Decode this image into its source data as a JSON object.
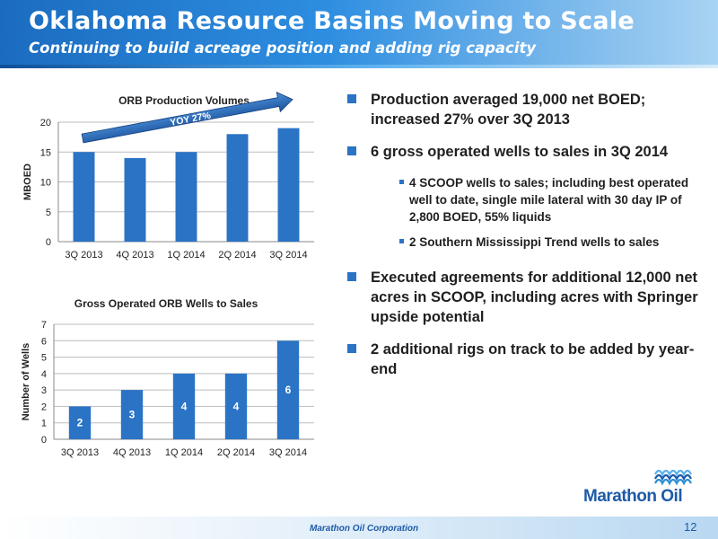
{
  "header": {
    "title": "Oklahoma Resource Basins Moving to Scale",
    "subtitle": "Continuing to build acreage position and adding rig capacity"
  },
  "chart_data": [
    {
      "type": "bar",
      "title": "ORB Production Volumes",
      "categories": [
        "3Q 2013",
        "4Q 2013",
        "1Q 2014",
        "2Q 2014",
        "3Q 2014"
      ],
      "values": [
        15,
        14,
        15,
        18,
        19
      ],
      "ylabel": "MBOED",
      "xlabel": "",
      "ylim": [
        0,
        20
      ],
      "yticks": [
        0,
        5,
        10,
        15,
        20
      ],
      "grid": true,
      "bar_color": "#2a73c5",
      "annotation": "YOY 27%"
    },
    {
      "type": "bar",
      "title": "Gross Operated ORB Wells to Sales",
      "categories": [
        "3Q 2013",
        "4Q 2013",
        "1Q 2014",
        "2Q 2014",
        "3Q 2014"
      ],
      "values": [
        2,
        3,
        4,
        4,
        6
      ],
      "ylabel": "Number of Wells",
      "xlabel": "",
      "ylim": [
        0,
        7
      ],
      "yticks": [
        0,
        1,
        2,
        3,
        4,
        5,
        6,
        7
      ],
      "grid": true,
      "bar_color": "#2a73c5",
      "data_labels": true
    }
  ],
  "bullets": {
    "b1": "Production averaged 19,000 net BOED; increased 27% over 3Q 2013",
    "b2": "6 gross operated wells to sales in 3Q 2014",
    "b2a": "4 SCOOP wells to sales; including best operated well to date, single mile lateral with 30 day IP of 2,800 BOED, 55% liquids",
    "b2b": "2 Southern Mississippi Trend wells to sales",
    "b3": "Executed agreements for additional 12,000 net acres in SCOOP, including acres with Springer upside potential",
    "b4": "2 additional rigs on track to be added by year-end"
  },
  "logo": {
    "text": "Marathon Oil"
  },
  "footer": {
    "corp": "Marathon Oil Corporation",
    "page": "12"
  },
  "colors": {
    "accent": "#2a73c5",
    "brand": "#1d5aa8"
  }
}
